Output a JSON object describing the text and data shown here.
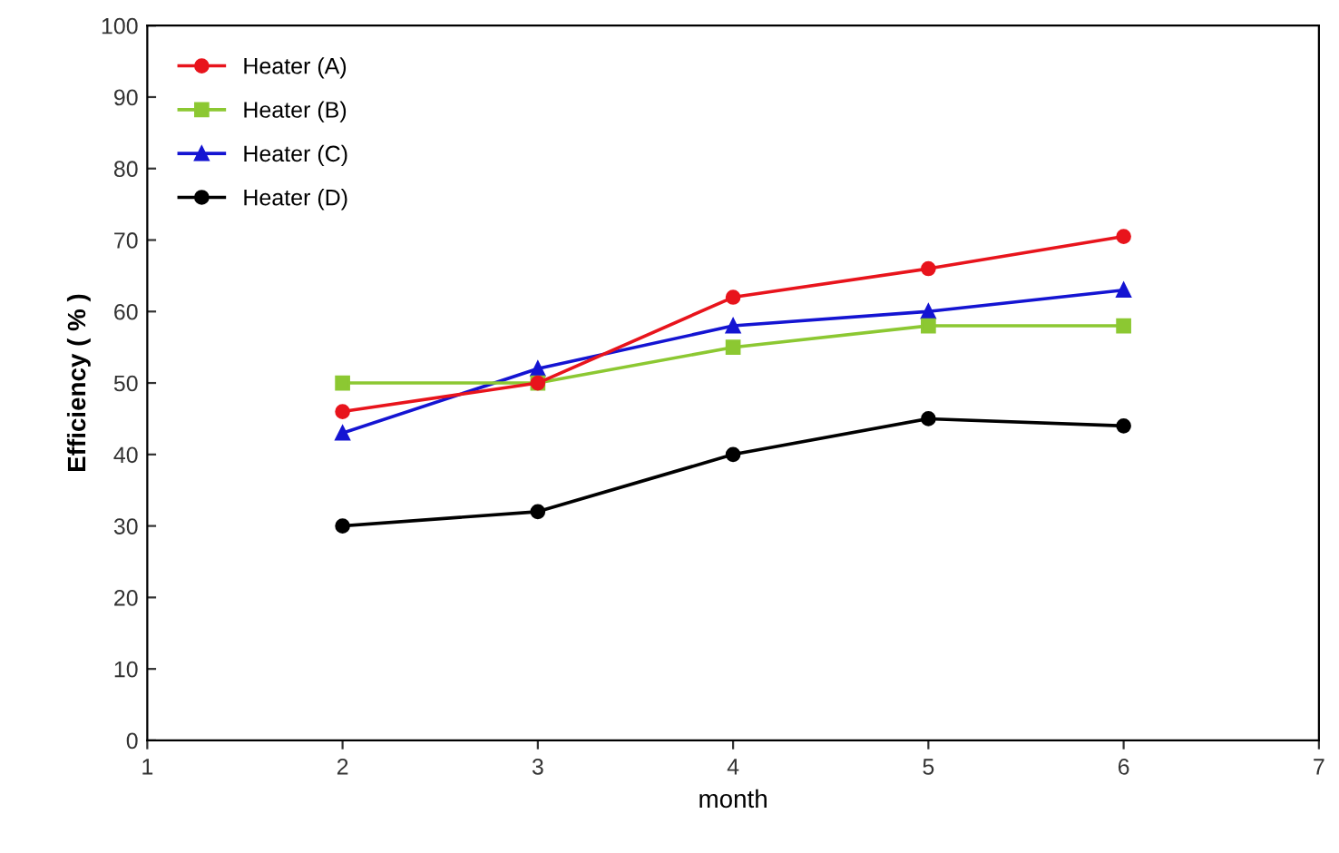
{
  "chart_data": {
    "type": "line",
    "xlabel": "month",
    "ylabel": "Efficiency ( % )",
    "x": [
      2,
      3,
      4,
      5,
      6
    ],
    "series": [
      {
        "name": "Heater (A)",
        "color": "#e8141c",
        "values": [
          46,
          50,
          62,
          66,
          70.5
        ],
        "marker": "circle"
      },
      {
        "name": "Heater (B)",
        "color": "#8cc832",
        "values": [
          50,
          50,
          55,
          58,
          58
        ],
        "marker": "square"
      },
      {
        "name": "Heater (C)",
        "color": "#1414d2",
        "values": [
          43,
          52,
          58,
          60,
          63
        ],
        "marker": "triangle"
      },
      {
        "name": "Heater (D)",
        "color": "#000000",
        "values": [
          30,
          32,
          40,
          45,
          44
        ],
        "marker": "circle"
      }
    ],
    "xlim": [
      1,
      7
    ],
    "xticks": [
      1,
      2,
      3,
      4,
      5,
      6,
      7
    ],
    "ylim": [
      0,
      100
    ],
    "yticks": [
      0,
      10,
      20,
      30,
      40,
      50,
      60,
      70,
      80,
      90,
      100
    ],
    "grid": false,
    "legend": "top left",
    "line_style": "solid"
  }
}
